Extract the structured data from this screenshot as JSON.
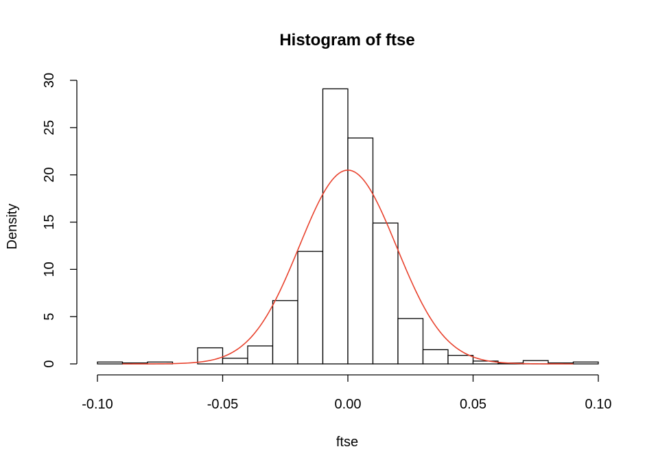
{
  "chart_data": {
    "type": "bar",
    "title": "Histogram of ftse",
    "xlabel": "ftse",
    "ylabel": "Density",
    "xlim": [
      -0.1,
      0.1
    ],
    "ylim": [
      0,
      30
    ],
    "x_ticks": [
      "-0.10",
      "-0.05",
      "0.00",
      "0.05",
      "0.10"
    ],
    "x_tick_values": [
      -0.1,
      -0.05,
      0.0,
      0.05,
      0.1
    ],
    "y_ticks": [
      "0",
      "5",
      "10",
      "15",
      "20",
      "25",
      "30"
    ],
    "y_tick_values": [
      0,
      5,
      10,
      15,
      20,
      25,
      30
    ],
    "grid": false,
    "bin_width": 0.01,
    "bins": [
      {
        "start": -0.1,
        "end": -0.09,
        "density": 0.2
      },
      {
        "start": -0.09,
        "end": -0.08,
        "density": 0.1
      },
      {
        "start": -0.08,
        "end": -0.07,
        "density": 0.2
      },
      {
        "start": -0.07,
        "end": -0.06,
        "density": 0.0
      },
      {
        "start": -0.06,
        "end": -0.05,
        "density": 1.7
      },
      {
        "start": -0.05,
        "end": -0.04,
        "density": 0.6
      },
      {
        "start": -0.04,
        "end": -0.03,
        "density": 1.9
      },
      {
        "start": -0.03,
        "end": -0.02,
        "density": 6.7
      },
      {
        "start": -0.02,
        "end": -0.01,
        "density": 11.9
      },
      {
        "start": -0.01,
        "end": 0.0,
        "density": 29.1
      },
      {
        "start": 0.0,
        "end": 0.01,
        "density": 23.9
      },
      {
        "start": 0.01,
        "end": 0.02,
        "density": 14.9
      },
      {
        "start": 0.02,
        "end": 0.03,
        "density": 4.8
      },
      {
        "start": 0.03,
        "end": 0.04,
        "density": 1.5
      },
      {
        "start": 0.04,
        "end": 0.05,
        "density": 0.9
      },
      {
        "start": 0.05,
        "end": 0.06,
        "density": 0.3
      },
      {
        "start": 0.06,
        "end": 0.07,
        "density": 0.1
      },
      {
        "start": 0.07,
        "end": 0.08,
        "density": 0.35
      },
      {
        "start": 0.08,
        "end": 0.09,
        "density": 0.1
      },
      {
        "start": 0.09,
        "end": 0.1,
        "density": 0.2
      }
    ],
    "density_curve": {
      "distribution": "normal",
      "mean": 0.0,
      "sd": 0.0194,
      "peak": 20.5,
      "x_range": [
        -0.09,
        0.09
      ],
      "color": "#e8412c"
    },
    "colors": {
      "bar_fill": "#ffffff",
      "bar_stroke": "#000000",
      "curve": "#e8412c"
    }
  }
}
